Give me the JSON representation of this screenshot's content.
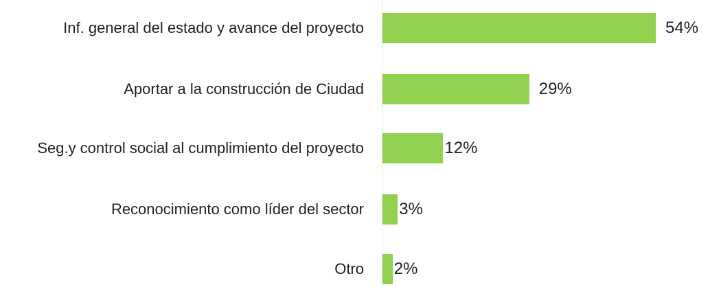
{
  "chart_data": {
    "type": "bar",
    "orientation": "horizontal",
    "categories": [
      "Inf. general del estado y avance del proyecto",
      "Aportar a la construcción de Ciudad",
      "Seg.y control social al cumplimiento del proyecto",
      "Reconocimiento como líder del sector",
      "Otro"
    ],
    "values": [
      54,
      29,
      12,
      3,
      2
    ],
    "value_labels": [
      "54%",
      "29%",
      "12%",
      "3%",
      "2%"
    ],
    "color": "#92d050"
  }
}
